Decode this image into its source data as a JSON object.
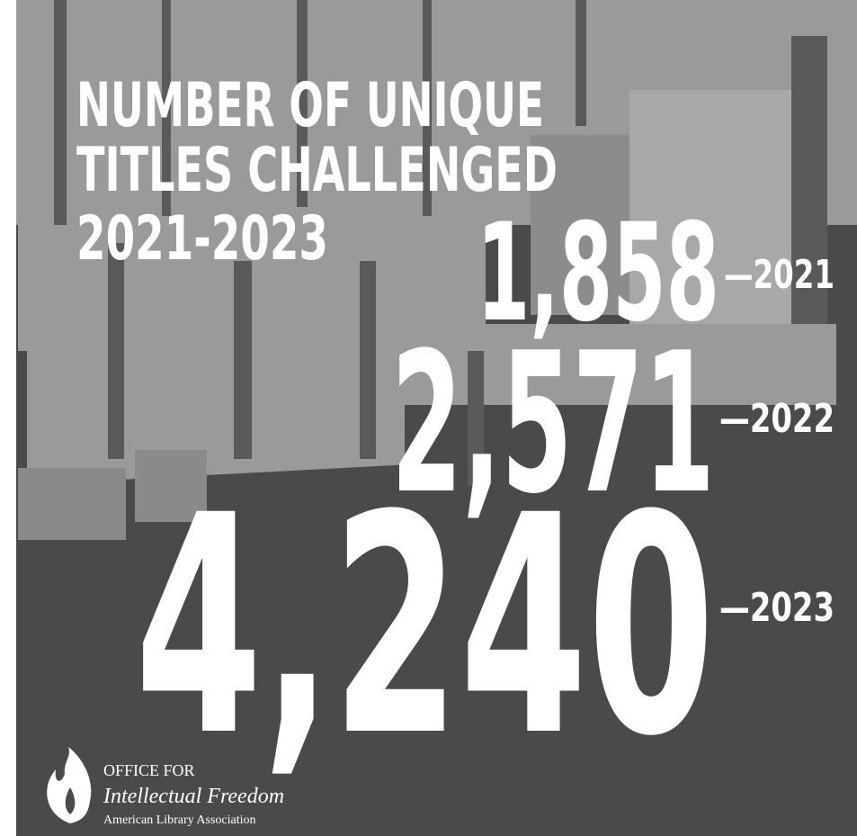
{
  "header": {
    "title_lines": [
      "NUMBER OF UNIQUE",
      "TITLES CHALLENGED",
      "2021-2023"
    ]
  },
  "stats": [
    {
      "value": "1,858",
      "year": "—2021"
    },
    {
      "value": "2,571",
      "year": "—2022"
    },
    {
      "value": "4,240",
      "year": "—2023"
    }
  ],
  "logo": {
    "line1": "OFFICE FOR",
    "line2": "Intellectual Freedom",
    "line3": "American Library Association"
  }
}
